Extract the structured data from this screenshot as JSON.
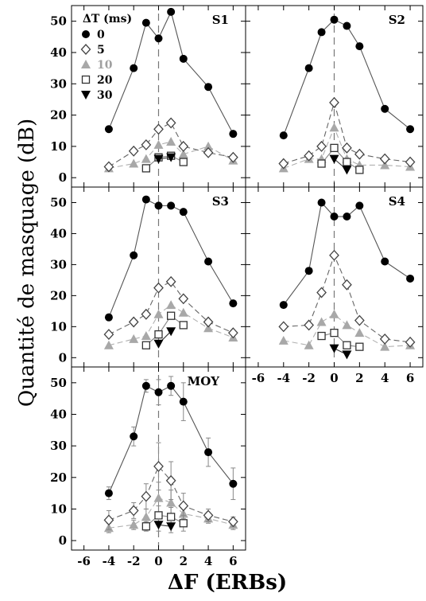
{
  "chart_data": {
    "type": "scatter",
    "ylabel": "Quantité de masquage (dB)",
    "xlabel": "ΔF (ERBs)",
    "x_ticks": [
      -6,
      -4,
      -2,
      0,
      2,
      4,
      6
    ],
    "y_ticks": [
      0,
      10,
      20,
      30,
      40,
      50
    ],
    "xlim": [
      -7,
      7
    ],
    "ylim": [
      -3,
      55
    ],
    "reference_line_x": 0,
    "legend": {
      "title": "ΔT (ms)",
      "position": "top-left of first panel",
      "entries": [
        {
          "label": "0",
          "marker": "circle",
          "color": "#000000"
        },
        {
          "label": "5",
          "marker": "diamond-open",
          "color": "#333333"
        },
        {
          "label": "10",
          "marker": "triangle-up",
          "color": "#a8a8a8"
        },
        {
          "label": "20",
          "marker": "square-open",
          "color": "#333333"
        },
        {
          "label": "30",
          "marker": "triangle-down",
          "color": "#000000"
        }
      ]
    },
    "panels": [
      {
        "label": "S1",
        "series": [
          {
            "name": "0",
            "x": [
              -4,
              -2,
              -1,
              0,
              1,
              2,
              4,
              6
            ],
            "y": [
              15.5,
              35,
              49.5,
              44.5,
              53,
              38,
              29,
              14
            ]
          },
          {
            "name": "5",
            "x": [
              -4,
              -2,
              -1,
              0,
              1,
              2,
              4,
              6
            ],
            "y": [
              3.5,
              8.5,
              10.5,
              15.5,
              17.5,
              10,
              8,
              6.5
            ]
          },
          {
            "name": "10",
            "x": [
              -4,
              -2,
              -1,
              0,
              1,
              2,
              4,
              6
            ],
            "y": [
              3,
              4.5,
              6,
              10.5,
              11.5,
              7.5,
              10,
              5.5
            ]
          },
          {
            "name": "20",
            "x": [
              -1,
              0,
              1,
              2
            ],
            "y": [
              3,
              6.5,
              7,
              5
            ]
          },
          {
            "name": "30",
            "x": [
              0,
              1
            ],
            "y": [
              6,
              6.5
            ]
          }
        ]
      },
      {
        "label": "S2",
        "series": [
          {
            "name": "0",
            "x": [
              -4,
              -2,
              -1,
              0,
              1,
              2,
              4,
              6
            ],
            "y": [
              13.5,
              35,
              46.5,
              50.5,
              48.5,
              42,
              22,
              15.5
            ]
          },
          {
            "name": "5",
            "x": [
              -4,
              -2,
              -1,
              0,
              1,
              2,
              4,
              6
            ],
            "y": [
              4.5,
              7,
              10,
              24,
              9.5,
              7.5,
              6,
              5
            ]
          },
          {
            "name": "10",
            "x": [
              -4,
              -2,
              -1,
              0,
              1,
              2,
              4,
              6
            ],
            "y": [
              3,
              6,
              6,
              16,
              6,
              4,
              4,
              3.5
            ]
          },
          {
            "name": "20",
            "x": [
              -1,
              0,
              1,
              2
            ],
            "y": [
              4.5,
              9.5,
              5,
              2.5
            ]
          },
          {
            "name": "30",
            "x": [
              0,
              1
            ],
            "y": [
              6,
              2.5
            ]
          }
        ]
      },
      {
        "label": "S3",
        "series": [
          {
            "name": "0",
            "x": [
              -4,
              -2,
              -1,
              0,
              1,
              2,
              4,
              6
            ],
            "y": [
              13,
              33,
              51,
              49,
              49,
              47,
              31,
              17.5
            ]
          },
          {
            "name": "5",
            "x": [
              -4,
              -2,
              -1,
              0,
              1,
              2,
              4,
              6
            ],
            "y": [
              7.5,
              11.5,
              14,
              22.5,
              24.5,
              19,
              11.5,
              8
            ]
          },
          {
            "name": "10",
            "x": [
              -4,
              -2,
              -1,
              0,
              1,
              2,
              4,
              6
            ],
            "y": [
              4,
              6,
              7,
              14,
              17,
              14.5,
              9.5,
              6.5
            ]
          },
          {
            "name": "20",
            "x": [
              -1,
              0,
              1,
              2
            ],
            "y": [
              4,
              7.5,
              13.5,
              10.5
            ]
          },
          {
            "name": "30",
            "x": [
              0,
              1
            ],
            "y": [
              4.5,
              8.5
            ]
          }
        ]
      },
      {
        "label": "S4",
        "series": [
          {
            "name": "0",
            "x": [
              -4,
              -2,
              -1,
              0,
              1,
              2,
              4,
              6
            ],
            "y": [
              17,
              28,
              50,
              45.5,
              45.5,
              49,
              31,
              25.5
            ]
          },
          {
            "name": "5",
            "x": [
              -4,
              -2,
              -1,
              0,
              1,
              2,
              4,
              6
            ],
            "y": [
              10,
              10.5,
              21,
              33,
              23.5,
              12,
              6,
              5
            ]
          },
          {
            "name": "10",
            "x": [
              -4,
              -2,
              -1,
              0,
              1,
              2,
              4,
              6
            ],
            "y": [
              5.5,
              4,
              11.5,
              14,
              10.5,
              8,
              3.5,
              4
            ]
          },
          {
            "name": "20",
            "x": [
              -1,
              0,
              1,
              2
            ],
            "y": [
              7,
              8,
              4,
              3.5
            ]
          },
          {
            "name": "30",
            "x": [
              0,
              1
            ],
            "y": [
              3,
              1
            ]
          }
        ]
      },
      {
        "label": "MOY",
        "error_bars": true,
        "series": [
          {
            "name": "0",
            "x": [
              -4,
              -2,
              -1,
              0,
              1,
              2,
              4,
              6
            ],
            "y": [
              15,
              33,
              49,
              47,
              49,
              44,
              28,
              18
            ],
            "err": [
              2,
              3,
              2,
              4,
              3,
              6,
              4.5,
              5
            ]
          },
          {
            "name": "5",
            "x": [
              -4,
              -2,
              -1,
              0,
              1,
              2,
              4,
              6
            ],
            "y": [
              6.5,
              9.5,
              14,
              23.5,
              19,
              11,
              8,
              6
            ],
            "err": [
              3,
              2.5,
              4,
              7.5,
              6,
              4,
              2,
              1.5
            ]
          },
          {
            "name": "10",
            "x": [
              -4,
              -2,
              -1,
              0,
              1,
              2,
              4,
              6
            ],
            "y": [
              4,
              5,
              7.5,
              13.5,
              12,
              8.5,
              7,
              5
            ],
            "err": [
              1.5,
              1.5,
              2.5,
              5,
              4,
              3,
              1.5,
              1.5
            ]
          },
          {
            "name": "20",
            "x": [
              -1,
              0,
              1,
              2
            ],
            "y": [
              4.5,
              8,
              7.5,
              5.5
            ],
            "err": [
              1.5,
              3,
              3,
              2.5
            ]
          },
          {
            "name": "30",
            "x": [
              0,
              1
            ],
            "y": [
              5,
              4.5
            ],
            "err": [
              2,
              2
            ]
          }
        ]
      }
    ]
  }
}
